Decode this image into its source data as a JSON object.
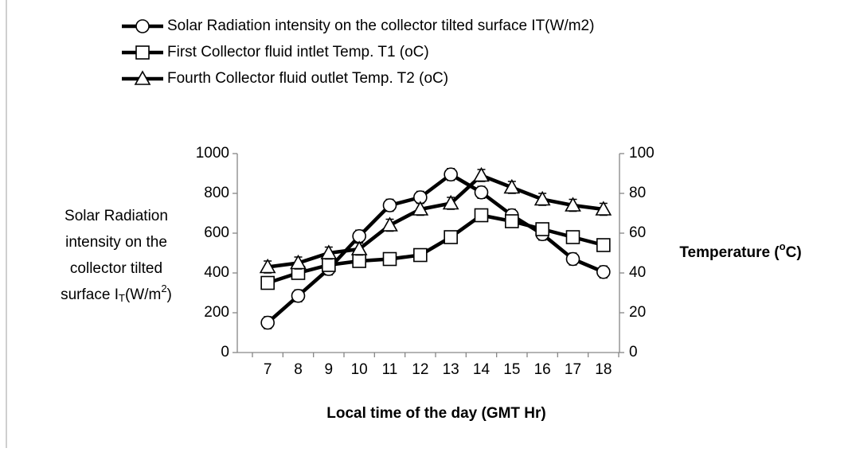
{
  "chart_data": {
    "type": "line",
    "categories": [
      "7",
      "8",
      "9",
      "10",
      "11",
      "12",
      "13",
      "14",
      "15",
      "16",
      "17",
      "18"
    ],
    "series": [
      {
        "name": "Solar Radiation intensity on the collector tilted surface IT(W/m2)",
        "color": "#000000",
        "marker": "circle",
        "axis": "y",
        "values": [
          150,
          285,
          420,
          585,
          740,
          780,
          895,
          805,
          690,
          595,
          470,
          405
        ],
        "errors": [
          30,
          30,
          30,
          30,
          30,
          30,
          30,
          30,
          30,
          30,
          30,
          30
        ]
      },
      {
        "name": "First Collector fluid intlet Temp. T1 (oC)",
        "color": "#000000",
        "marker": "square",
        "axis": "y2",
        "values": [
          35,
          40,
          44,
          46,
          47,
          49,
          58,
          69,
          66,
          62,
          58,
          54
        ],
        "errors": [
          3,
          3,
          3,
          3,
          3,
          3,
          3,
          3,
          3,
          3,
          3,
          3
        ]
      },
      {
        "name": "Fourth Collector fluid outlet Temp. T2 (oC)",
        "color": "#000000",
        "marker": "triangle",
        "axis": "y2",
        "values": [
          43,
          45,
          50,
          52,
          64,
          72,
          75,
          89,
          83,
          77,
          74,
          72
        ],
        "errors": [
          3,
          3,
          3,
          3,
          3,
          3,
          3,
          3,
          3,
          3,
          3,
          3
        ]
      }
    ],
    "xlabel": "Local time of the day (GMT Hr)",
    "ylabel": {
      "lines": [
        "Solar Radiation",
        "intensity on the",
        "collector tilted"
      ],
      "last": [
        "surface I",
        "T",
        "(W/m",
        "2",
        ")"
      ]
    },
    "y2label": [
      "Temperature (",
      "o",
      "C)"
    ],
    "ylim": [
      0,
      1000
    ],
    "yticks": [
      0,
      200,
      400,
      600,
      800,
      1000
    ],
    "y2lim": [
      0,
      100
    ],
    "y2ticks": [
      0,
      20,
      40,
      60,
      80,
      100
    ],
    "legend": "top",
    "grid": false
  }
}
